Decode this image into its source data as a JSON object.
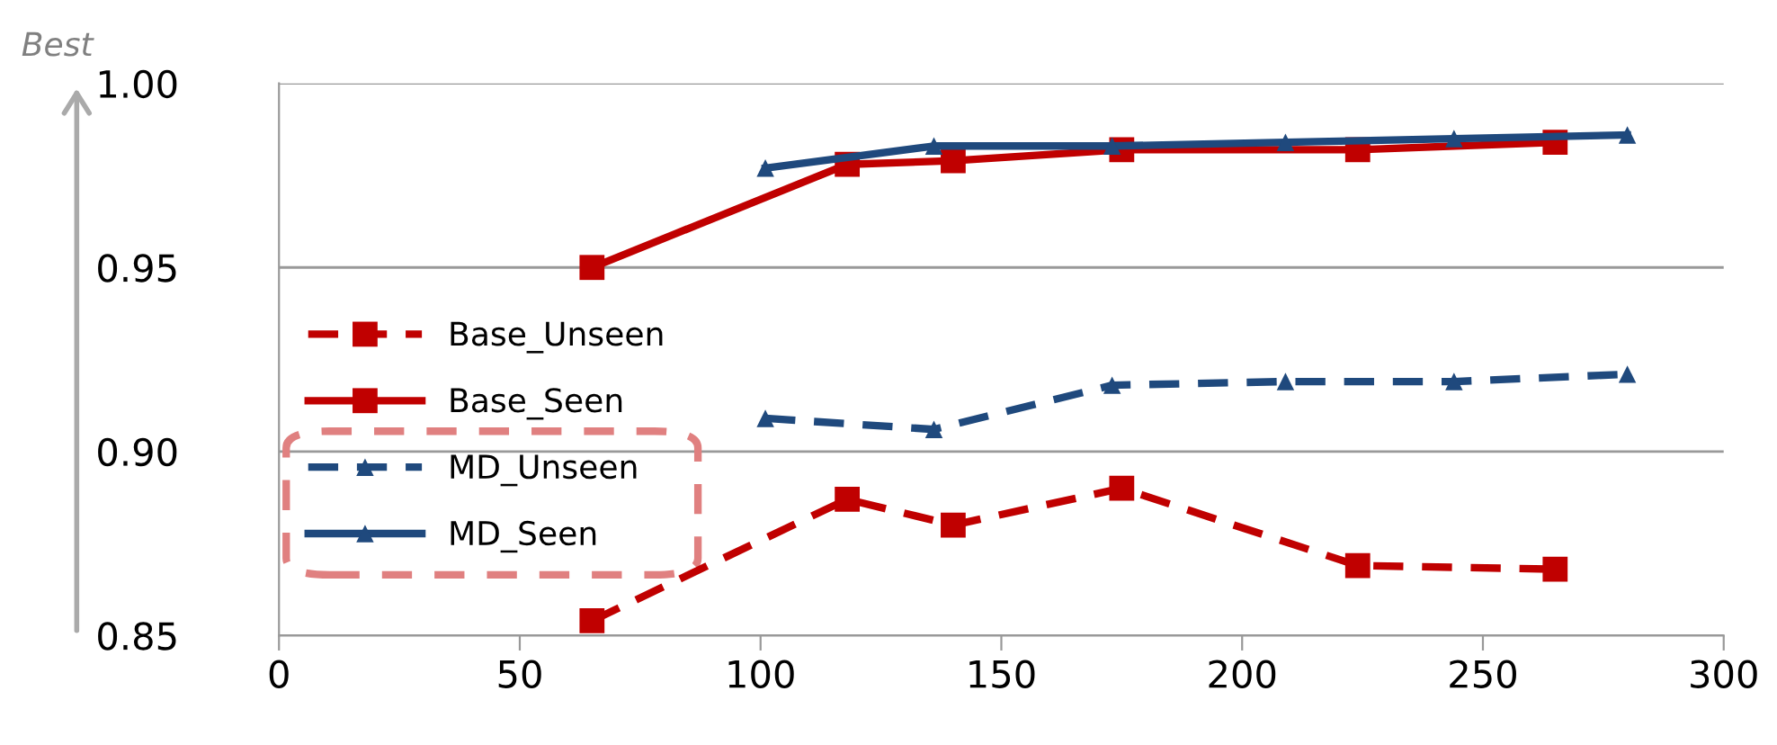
{
  "chart_data": {
    "type": "line",
    "series": [
      {
        "name": "Base_Unseen",
        "color": "#c00000",
        "line_style": "dashed",
        "marker": "square",
        "x": [
          65,
          118,
          140,
          175,
          224,
          265
        ],
        "values": [
          0.854,
          0.887,
          0.88,
          0.89,
          0.869,
          0.868
        ]
      },
      {
        "name": "Base_Seen",
        "color": "#c00000",
        "line_style": "solid",
        "marker": "square",
        "x": [
          65,
          118,
          140,
          175,
          224,
          265
        ],
        "values": [
          0.95,
          0.978,
          0.979,
          0.982,
          0.982,
          0.984
        ]
      },
      {
        "name": "MD_Unseen",
        "color": "#1f497d",
        "line_style": "dashed",
        "marker": "triangle",
        "x": [
          101,
          136,
          173,
          209,
          244,
          280
        ],
        "values": [
          0.909,
          0.906,
          0.918,
          0.919,
          0.919,
          0.921
        ]
      },
      {
        "name": "MD_Seen",
        "color": "#1f497d",
        "line_style": "solid",
        "marker": "triangle",
        "x": [
          101,
          136,
          173,
          209,
          244,
          280
        ],
        "values": [
          0.977,
          0.983,
          0.983,
          0.984,
          0.985,
          0.986
        ]
      }
    ],
    "xlim": [
      0,
      300
    ],
    "xticks": [
      0,
      50,
      100,
      150,
      200,
      250,
      300
    ],
    "ylim": [
      0.85,
      1.0
    ],
    "yticks": [
      {
        "value": 0.85,
        "label": "0.85"
      },
      {
        "value": 0.9,
        "label": "0.90"
      },
      {
        "value": 0.95,
        "label": "0.95"
      },
      {
        "value": 1.0,
        "label": "1.00"
      }
    ],
    "grid": "y",
    "legend": "left",
    "annotations": [
      "Best"
    ]
  }
}
